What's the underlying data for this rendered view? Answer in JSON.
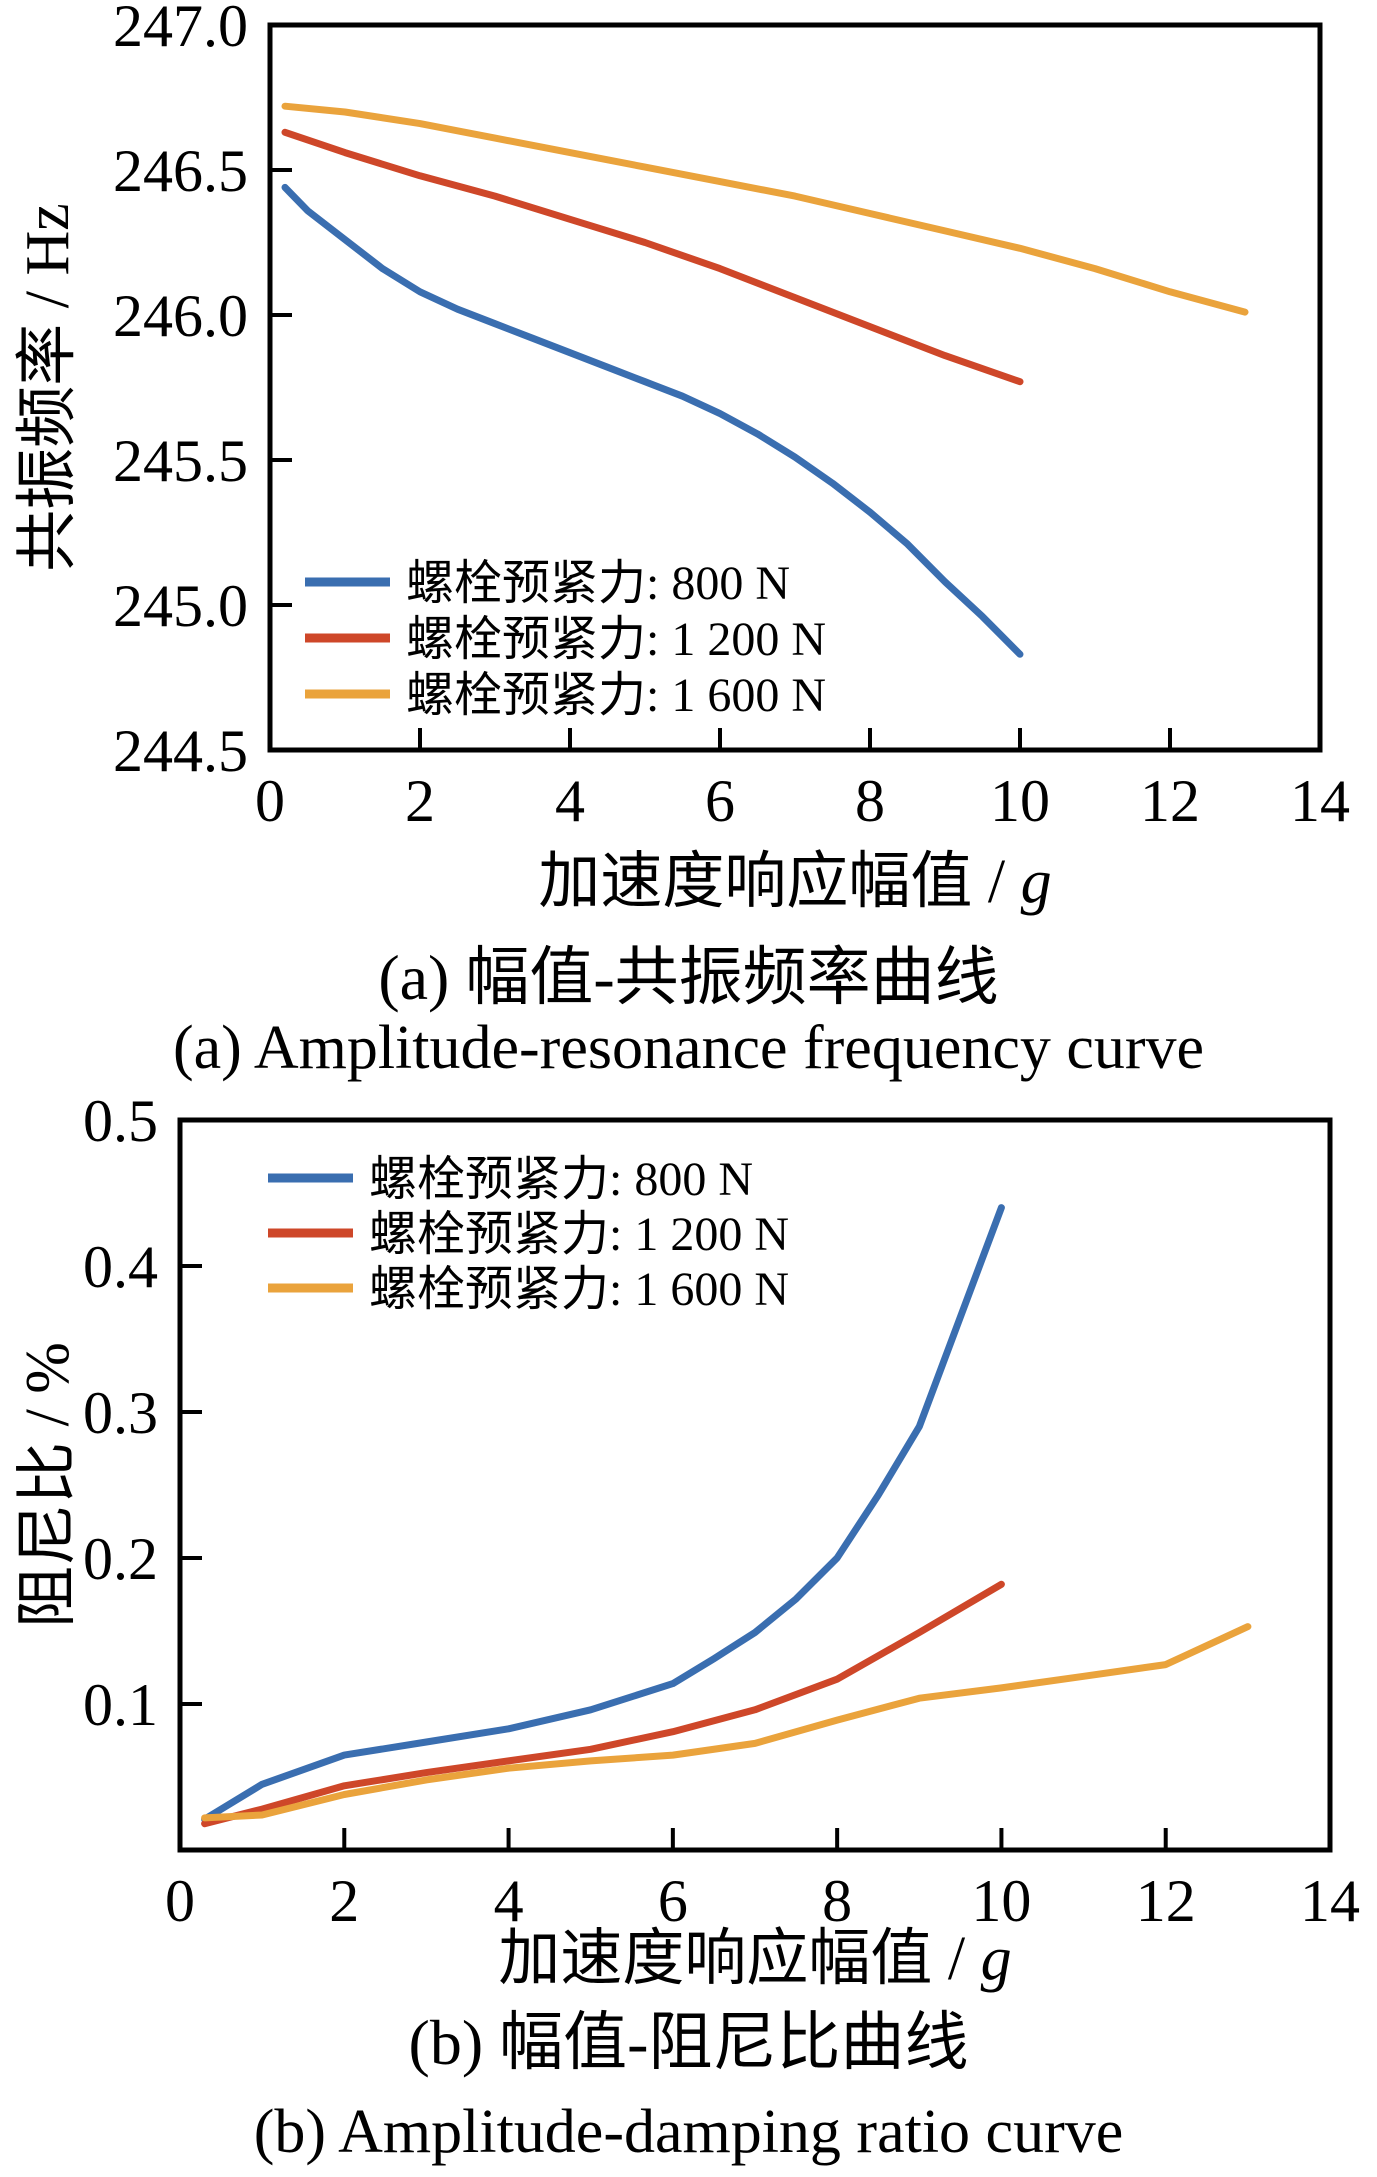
{
  "figure": {
    "background": "#ffffff",
    "text_color": "#000000"
  },
  "palette": {
    "blue": "#3A6EB0",
    "red": "#CE4729",
    "orange": "#EAA33C",
    "axis": "#000000"
  },
  "chart_data": [
    {
      "id": "chart-a",
      "type": "line",
      "xlabel_prefix": "加速度响应幅值 / ",
      "xlabel_unit": "g",
      "ylabel": "共振频率 / Hz",
      "caption_zh": "(a)  幅值-共振频率曲线",
      "caption_en": "(a) Amplitude-resonance frequency curve",
      "xlim": [
        0,
        14
      ],
      "ylim": [
        244.5,
        247.0
      ],
      "xticks": [
        0,
        2,
        4,
        6,
        8,
        10,
        12,
        14
      ],
      "xtick_labels": [
        "0",
        "2",
        "4",
        "6",
        "8",
        "10",
        "12",
        "14"
      ],
      "yticks": [
        244.5,
        245.0,
        245.5,
        246.0,
        246.5,
        247.0
      ],
      "ytick_labels": [
        "244.5",
        "245.0",
        "245.5",
        "246.0",
        "246.5",
        "247.0"
      ],
      "grid": false,
      "legend_position": "lower-left",
      "series": [
        {
          "name": "螺栓预紧力: 800 N",
          "color": "blue",
          "x": [
            0.2,
            0.5,
            1,
            1.5,
            2,
            2.5,
            3,
            3.5,
            4,
            4.5,
            5,
            5.5,
            6,
            6.5,
            7,
            7.5,
            8,
            8.5,
            9,
            9.5,
            10
          ],
          "y": [
            246.44,
            246.36,
            246.26,
            246.16,
            246.08,
            246.02,
            245.97,
            245.92,
            245.87,
            245.82,
            245.77,
            245.72,
            245.66,
            245.59,
            245.51,
            245.42,
            245.32,
            245.21,
            245.08,
            244.96,
            244.83
          ]
        },
        {
          "name": "螺栓预紧力: 1 200 N",
          "color": "red",
          "x": [
            0.2,
            1,
            2,
            3,
            4,
            5,
            6,
            7,
            8,
            9,
            10
          ],
          "y": [
            246.63,
            246.56,
            246.48,
            246.41,
            246.33,
            246.25,
            246.16,
            246.06,
            245.96,
            245.86,
            245.77
          ]
        },
        {
          "name": "螺栓预紧力: 1 600 N",
          "color": "orange",
          "x": [
            0.2,
            1,
            2,
            3,
            4,
            5,
            6,
            7,
            8,
            9,
            10,
            11,
            12,
            13
          ],
          "y": [
            246.72,
            246.7,
            246.66,
            246.61,
            246.56,
            246.51,
            246.46,
            246.41,
            246.35,
            246.29,
            246.23,
            246.16,
            246.08,
            246.01
          ]
        }
      ]
    },
    {
      "id": "chart-b",
      "type": "line",
      "xlabel_prefix": "加速度响应幅值 / ",
      "xlabel_unit": "g",
      "ylabel": "阻尼比 / %",
      "caption_zh": "(b)  幅值-阻尼比曲线",
      "caption_en": "(b)  Amplitude-damping ratio curve",
      "xlim": [
        0,
        14
      ],
      "ylim": [
        0,
        0.5
      ],
      "xticks": [
        0,
        2,
        4,
        6,
        8,
        10,
        12,
        14
      ],
      "xtick_labels": [
        "0",
        "2",
        "4",
        "6",
        "8",
        "10",
        "12",
        "14"
      ],
      "yticks": [
        0.1,
        0.2,
        0.3,
        0.4,
        0.5
      ],
      "ytick_labels": [
        "0.1",
        "0.2",
        "0.3",
        "0.4",
        "0.5"
      ],
      "grid": false,
      "legend_position": "upper-left",
      "series": [
        {
          "name": "螺栓预紧力: 800 N",
          "color": "blue",
          "x": [
            0.3,
            1,
            2,
            3,
            4,
            5,
            6,
            6.5,
            7,
            7.5,
            8,
            8.5,
            9,
            10
          ],
          "y": [
            0.021,
            0.045,
            0.065,
            0.074,
            0.083,
            0.096,
            0.114,
            0.131,
            0.149,
            0.172,
            0.2,
            0.243,
            0.29,
            0.44
          ]
        },
        {
          "name": "螺栓预紧力: 1 200 N",
          "color": "red",
          "x": [
            0.3,
            1,
            2,
            3,
            4,
            5,
            6,
            7,
            8,
            9,
            10
          ],
          "y": [
            0.018,
            0.028,
            0.044,
            0.053,
            0.061,
            0.069,
            0.081,
            0.096,
            0.117,
            0.149,
            0.182
          ]
        },
        {
          "name": "螺栓预紧力: 1 600 N",
          "color": "orange",
          "x": [
            0.3,
            1,
            2,
            3,
            4,
            5,
            6,
            7,
            8,
            9,
            10,
            11,
            12,
            13
          ],
          "y": [
            0.022,
            0.024,
            0.038,
            0.048,
            0.056,
            0.061,
            0.065,
            0.073,
            0.089,
            0.104,
            0.111,
            0.119,
            0.127,
            0.153
          ]
        }
      ]
    }
  ]
}
